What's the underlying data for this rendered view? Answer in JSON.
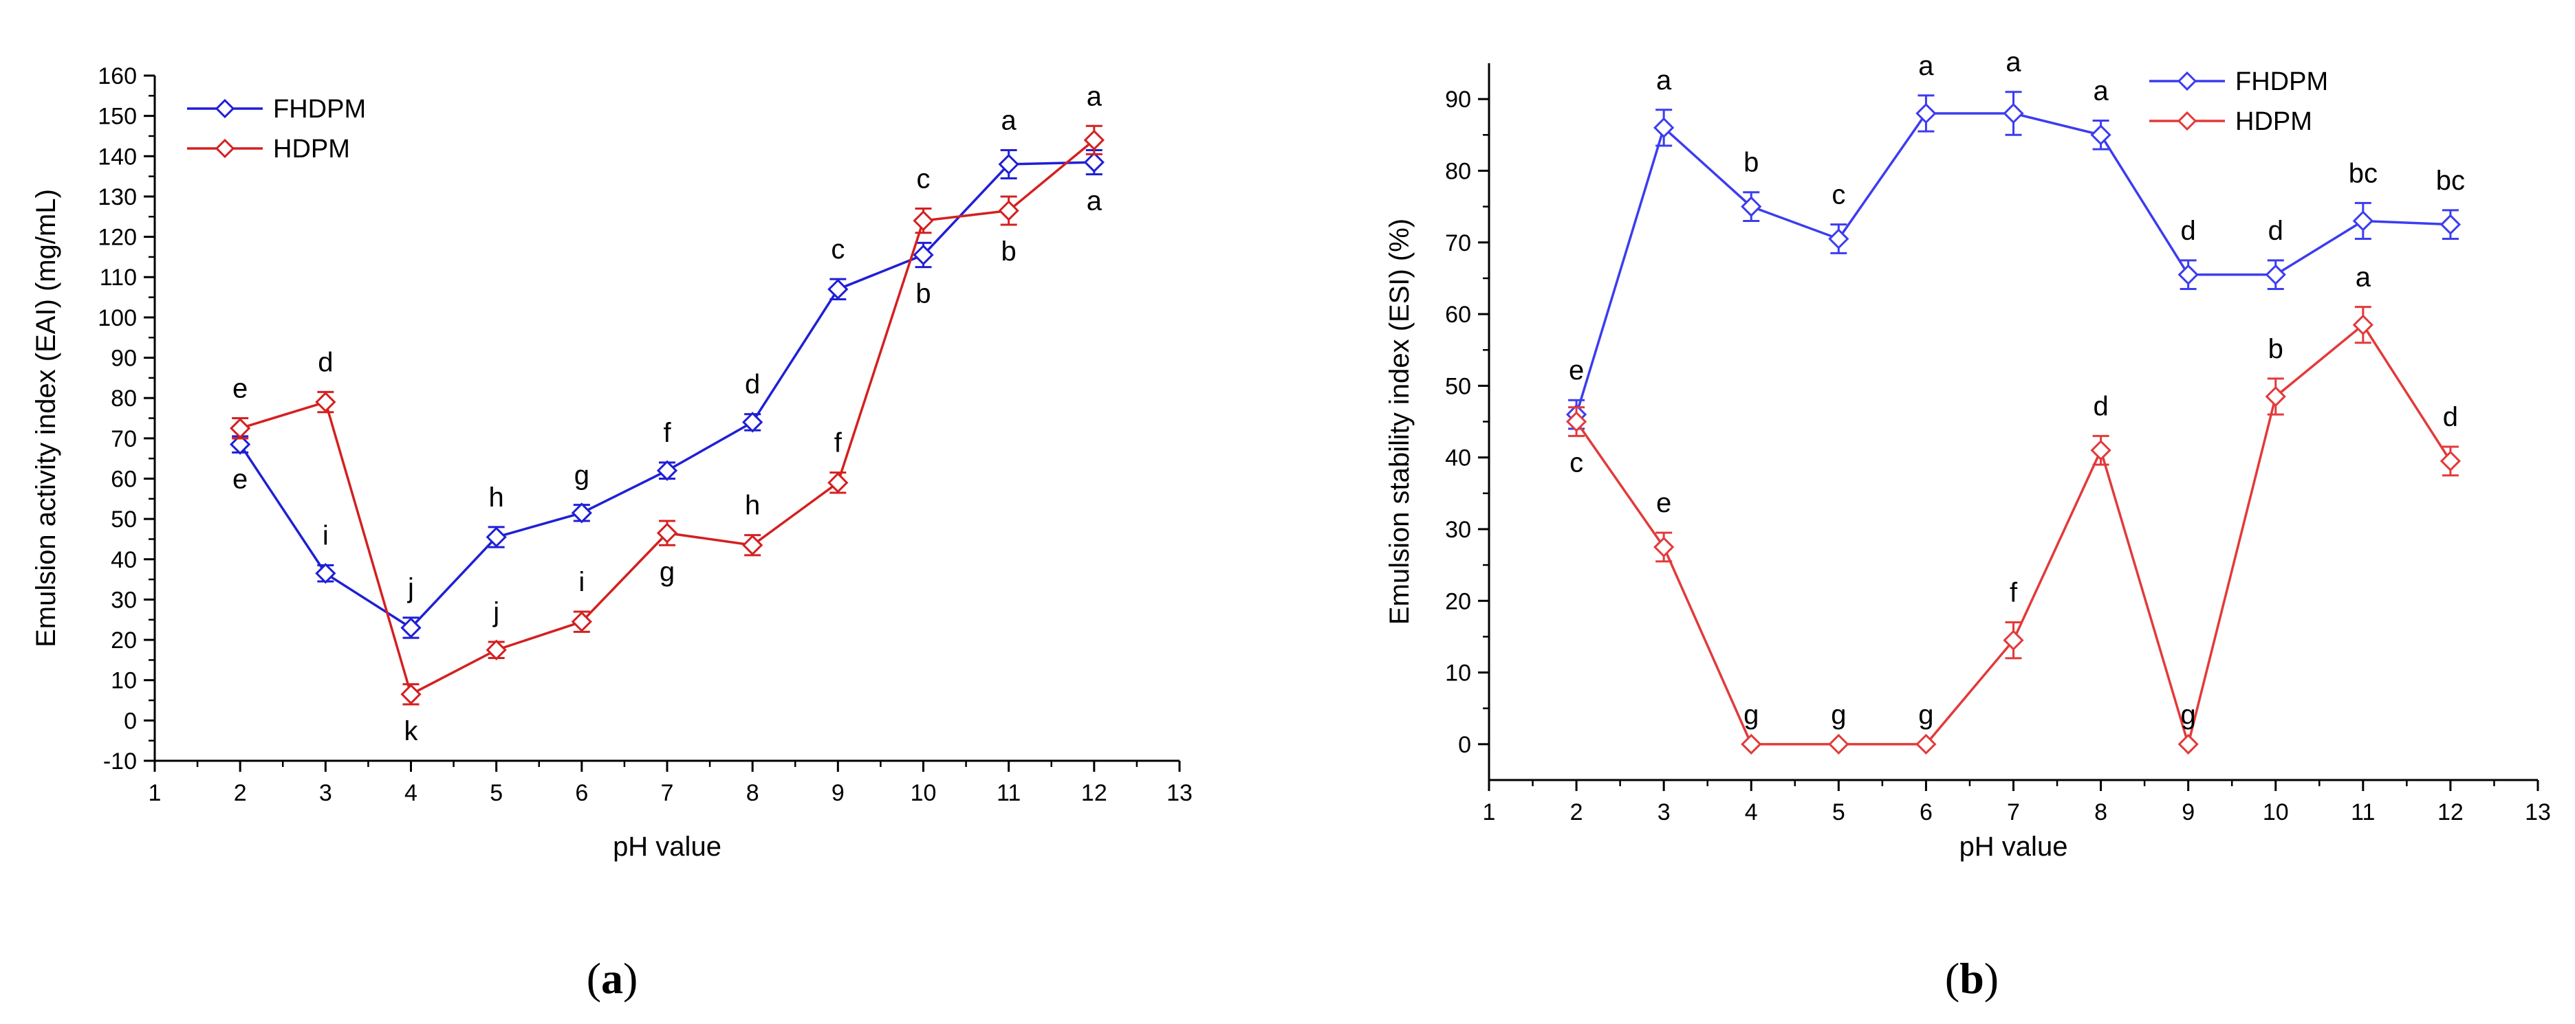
{
  "chart_data": [
    {
      "type": "line",
      "panel": "a",
      "caption": "a",
      "xlabel": "pH value",
      "ylabel": "Emulsion activity index (EAI) (mg/mL)",
      "xlim": [
        1,
        13
      ],
      "ylim": [
        -10,
        160
      ],
      "xticks": [
        1,
        2,
        3,
        4,
        5,
        6,
        7,
        8,
        9,
        10,
        11,
        12,
        13
      ],
      "yticks": [
        -10,
        0,
        10,
        20,
        30,
        40,
        50,
        60,
        70,
        80,
        90,
        100,
        110,
        120,
        130,
        140,
        150,
        160
      ],
      "legend_position": "top-left",
      "series": [
        {
          "name": "FHDPM",
          "color": "#1f1fd6",
          "x": [
            2,
            3,
            4,
            5,
            6,
            7,
            8,
            9,
            10,
            11,
            12
          ],
          "y": [
            68.5,
            36.5,
            23,
            45.5,
            51.5,
            62,
            74,
            107,
            115.5,
            138,
            138.5
          ],
          "err": [
            2,
            2,
            2.5,
            2.5,
            2,
            2,
            2,
            2.5,
            3,
            3.5,
            3
          ],
          "letters": [
            "e",
            "i",
            "j",
            "h",
            "g",
            "f",
            "d",
            "c",
            "b",
            "a",
            "a"
          ],
          "letter_pos": [
            "below",
            "above",
            "above",
            "above",
            "above",
            "above",
            "above",
            "above",
            "below",
            "above",
            "below"
          ]
        },
        {
          "name": "HDPM",
          "color": "#d42020",
          "x": [
            2,
            3,
            4,
            5,
            6,
            7,
            8,
            9,
            10,
            11,
            12
          ],
          "y": [
            72.5,
            79,
            6.5,
            17.5,
            24.5,
            46.5,
            43.5,
            59,
            124,
            126.5,
            144
          ],
          "err": [
            2.5,
            2.5,
            2.5,
            2,
            2.5,
            3,
            2.5,
            2.5,
            3,
            3.5,
            3.5
          ],
          "letters": [
            "e",
            "d",
            "k",
            "j",
            "i",
            "g",
            "h",
            "f",
            "c",
            "b",
            "a"
          ],
          "letter_pos": [
            "above",
            "above",
            "below",
            "above",
            "above",
            "below",
            "above",
            "above",
            "above",
            "below",
            "above"
          ]
        }
      ]
    },
    {
      "type": "line",
      "panel": "b",
      "caption": "b",
      "xlabel": "pH value",
      "ylabel": "Emulsion stability index (ESI) (%)",
      "xlim": [
        1,
        13
      ],
      "ylim": [
        -5,
        95
      ],
      "xticks": [
        1,
        2,
        3,
        4,
        5,
        6,
        7,
        8,
        9,
        10,
        11,
        12,
        13
      ],
      "yticks": [
        0,
        10,
        20,
        30,
        40,
        50,
        60,
        70,
        80,
        90
      ],
      "legend_position": "top-right",
      "series": [
        {
          "name": "FHDPM",
          "color": "#3c3cf0",
          "x": [
            2,
            3,
            4,
            5,
            6,
            7,
            8,
            9,
            10,
            11,
            12
          ],
          "y": [
            46,
            86,
            75,
            70.5,
            88,
            88,
            85,
            65.5,
            65.5,
            73,
            72.5
          ],
          "err": [
            2,
            2.5,
            2,
            2,
            2.5,
            3,
            2,
            2,
            2,
            2.5,
            2
          ],
          "letters": [
            "e",
            "a",
            "b",
            "c",
            "a",
            "a",
            "a",
            "d",
            "d",
            "bc",
            "bc"
          ],
          "letter_pos": [
            "above",
            "above",
            "above",
            "above",
            "above",
            "above",
            "above",
            "above",
            "above",
            "above",
            "above"
          ]
        },
        {
          "name": "HDPM",
          "color": "#e23a3a",
          "x": [
            2,
            3,
            4,
            5,
            6,
            7,
            8,
            9,
            10,
            11,
            12
          ],
          "y": [
            45,
            27.5,
            0,
            0,
            0,
            14.5,
            41,
            0,
            48.5,
            58.5,
            39.5
          ],
          "err": [
            2,
            2,
            0,
            0,
            0,
            2.5,
            2,
            0,
            2.5,
            2.5,
            2
          ],
          "letters": [
            "c",
            "e",
            "g",
            "g",
            "g",
            "f",
            "d",
            "g",
            "b",
            "a",
            "d"
          ],
          "letter_pos": [
            "below",
            "above",
            "above",
            "above",
            "above",
            "above",
            "above",
            "above",
            "above",
            "above",
            "above"
          ]
        }
      ]
    }
  ]
}
